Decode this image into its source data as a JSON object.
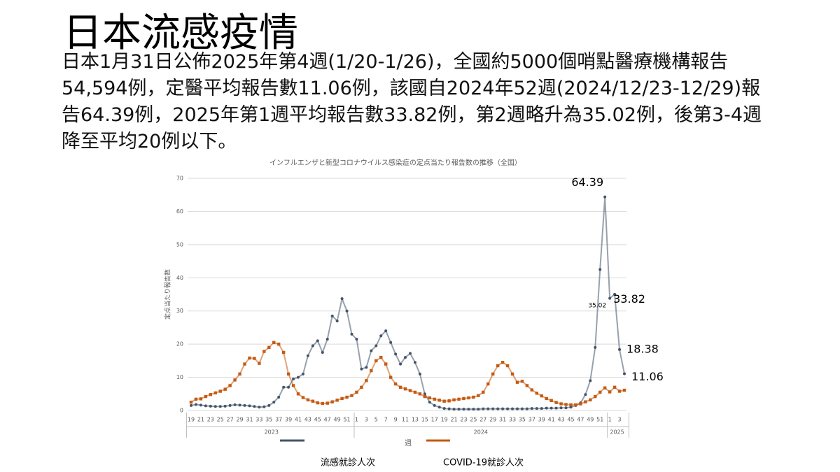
{
  "slide": {
    "title": "日本流感疫情",
    "text_lines": [
      "日本1月31日公佈2025年第4週(1/20-1/26)，全國約5000個哨點醫療機構報告",
      "54,594例，定醫平均報告數11.06例，該國自2024年52週(2024/12/23-12/29)報",
      "告64.39例，2025年第1週平均報告數33.82例，第2週略升為35.02例，後第3-4週",
      "降至平均20例以下。"
    ]
  },
  "chart_data": {
    "type": "line",
    "title": "インフルエンザと新型コロナウイルス感染症の定点当たり報告数の推移（全国）",
    "x_label": "週",
    "y_label": "定点当たり報告数",
    "categories": [
      "19",
      null,
      "21",
      null,
      "23",
      null,
      "25",
      null,
      "27",
      null,
      "29",
      null,
      "31",
      null,
      "33",
      null,
      "35",
      null,
      "37",
      null,
      "39",
      null,
      "41",
      null,
      "43",
      null,
      "45",
      null,
      "47",
      null,
      "49",
      null,
      "51",
      null,
      "1",
      null,
      "3",
      null,
      "5",
      null,
      "7",
      null,
      "9",
      null,
      "11",
      null,
      "13",
      null,
      "15",
      null,
      "17",
      null,
      "19",
      null,
      "21",
      null,
      "23",
      null,
      "25",
      null,
      "27",
      null,
      "29",
      null,
      "31",
      null,
      "33",
      null,
      "35",
      null,
      "37",
      null,
      "39",
      null,
      "41",
      null,
      "43",
      null,
      "45",
      null,
      "47",
      null,
      "49",
      null,
      "51",
      null,
      "1",
      null,
      "3",
      null
    ],
    "x_groups": [
      "2023",
      "2024",
      "2025"
    ],
    "series": [
      {
        "name": "流感就診人次",
        "color": "#44546a",
        "marker": "circle",
        "values": [
          1.5,
          1.8,
          1.6,
          1.4,
          1.3,
          1.2,
          1.2,
          1.3,
          1.5,
          1.7,
          1.6,
          1.5,
          1.4,
          1.2,
          1.0,
          1.1,
          1.5,
          2.5,
          4,
          7,
          7,
          9.5,
          10,
          11,
          16.5,
          19.5,
          21,
          17.5,
          21.5,
          28.5,
          27,
          33.7,
          30,
          23,
          21.5,
          12.5,
          13,
          18,
          19.5,
          22.5,
          24,
          20.5,
          17,
          14,
          16,
          17.2,
          14.5,
          11,
          5,
          2.5,
          1.5,
          1.0,
          0.6,
          0.5,
          0.4,
          0.4,
          0.4,
          0.4,
          0.4,
          0.4,
          0.5,
          0.5,
          0.5,
          0.5,
          0.5,
          0.5,
          0.5,
          0.5,
          0.5,
          0.5,
          0.6,
          0.6,
          0.6,
          0.7,
          0.7,
          0.7,
          0.8,
          0.8,
          1.0,
          1.5,
          2.3,
          4.8,
          9,
          19,
          42.5,
          64.39,
          33.82,
          35.02,
          18.38,
          11.06
        ]
      },
      {
        "name": "COVID-19就診人次",
        "color": "#c55a11",
        "marker": "square",
        "values": [
          2.5,
          3.4,
          3.5,
          4.2,
          4.8,
          5.3,
          5.8,
          6.4,
          7.5,
          9.2,
          11,
          14,
          15.8,
          15.7,
          14.2,
          17.8,
          19,
          20.5,
          20,
          17.5,
          11,
          7.5,
          5,
          3.9,
          3.2,
          2.8,
          2.3,
          2.1,
          2.2,
          2.6,
          3.1,
          3.6,
          4.0,
          4.5,
          5.5,
          7,
          9,
          12,
          15,
          16,
          14,
          10,
          8,
          7,
          6.5,
          6,
          5.5,
          5,
          4.2,
          3.8,
          3.4,
          3.1,
          2.8,
          2.9,
          3.2,
          3.4,
          3.6,
          3.8,
          4,
          4.5,
          5.5,
          8,
          11,
          13.5,
          14.5,
          13.5,
          11,
          8.5,
          8.8,
          7.5,
          6.2,
          5.2,
          4.4,
          3.6,
          3.0,
          2.4,
          2.0,
          1.8,
          1.7,
          1.7,
          2.0,
          2.6,
          3.2,
          4.2,
          5.5,
          6.8,
          5.6,
          7,
          5.8,
          6.1
        ]
      }
    ],
    "ylim": [
      0,
      70
    ],
    "yticks": [
      0,
      10,
      20,
      30,
      40,
      50,
      60,
      70
    ],
    "grid": true
  }
}
